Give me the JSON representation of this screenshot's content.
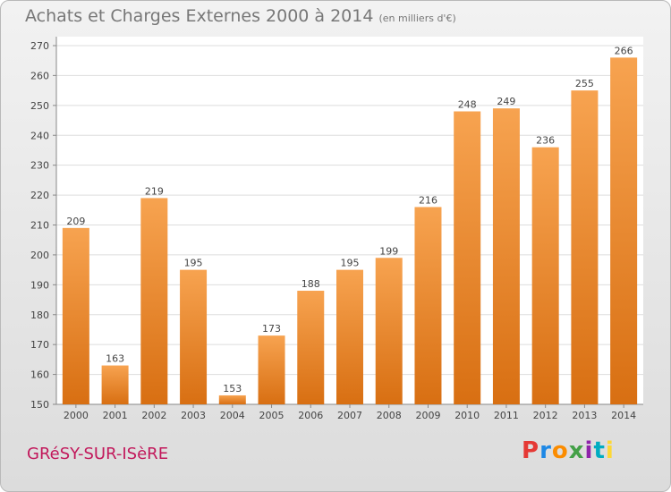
{
  "header": {
    "title": "Achats et Charges Externes 2000 à 2014",
    "units": "(en milliers d'€)"
  },
  "footer": {
    "place": "GRéSY-SUR-ISèRE",
    "logo_text": "Proxiti"
  },
  "colors": {
    "bar_top": "#f7a350",
    "bar_bottom": "#d86f12",
    "place_text": "#c2185b",
    "logo": [
      "#e53935",
      "#1e88e5",
      "#fb8c00",
      "#43a047",
      "#8e24aa",
      "#00acc1",
      "#fdd835"
    ]
  },
  "chart_data": {
    "type": "bar",
    "title": "Achats et Charges Externes 2000 à 2014",
    "subtitle": "(en milliers d'€)",
    "categories": [
      "2000",
      "2001",
      "2002",
      "2003",
      "2004",
      "2005",
      "2006",
      "2007",
      "2008",
      "2009",
      "2010",
      "2011",
      "2012",
      "2013",
      "2014"
    ],
    "values": [
      209,
      163,
      219,
      195,
      153,
      173,
      188,
      195,
      199,
      216,
      248,
      249,
      236,
      255,
      266
    ],
    "ylim": [
      150,
      270
    ],
    "yticks": [
      150,
      160,
      170,
      180,
      190,
      200,
      210,
      220,
      230,
      240,
      250,
      260,
      270
    ],
    "grid": true,
    "data_labels": true
  }
}
